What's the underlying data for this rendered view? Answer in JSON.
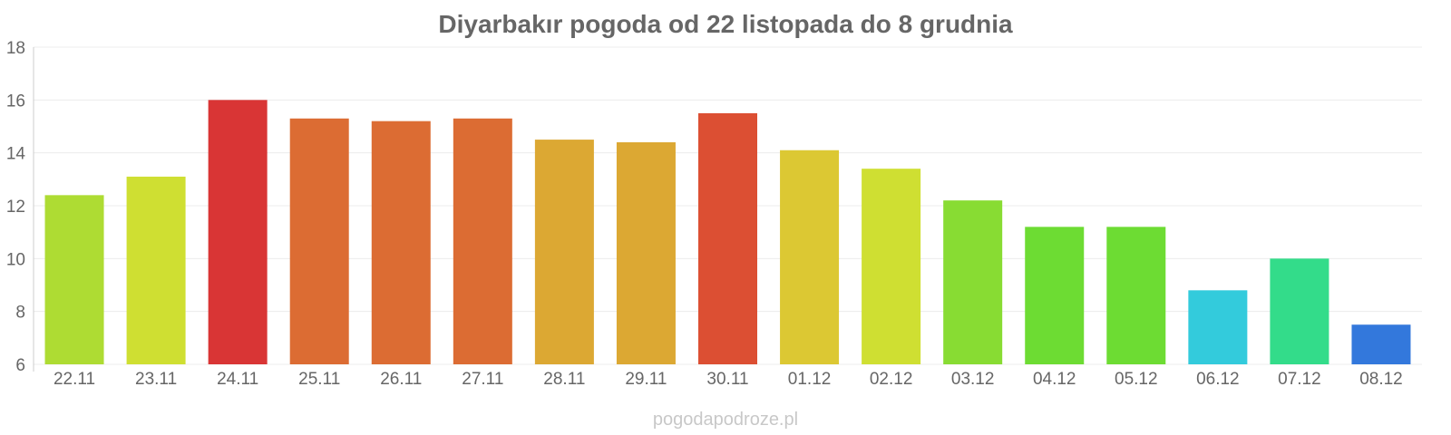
{
  "chart_data": {
    "type": "bar",
    "title": "Diyarbakır pogoda od 22 listopada do 8 grudnia",
    "xlabel": "",
    "ylabel": "",
    "categories": [
      "22.11",
      "23.11",
      "24.11",
      "25.11",
      "26.11",
      "27.11",
      "28.11",
      "29.11",
      "30.11",
      "01.12",
      "02.12",
      "03.12",
      "04.12",
      "05.12",
      "06.12",
      "07.12",
      "08.12"
    ],
    "values": [
      12.4,
      13.1,
      16.0,
      15.3,
      15.2,
      15.3,
      14.5,
      14.4,
      15.5,
      14.1,
      13.4,
      12.2,
      11.2,
      11.2,
      8.8,
      10.0,
      7.5
    ],
    "colors": [
      "#aedc33",
      "#cfdf32",
      "#d93535",
      "#dc6c33",
      "#dc6c33",
      "#dc6c33",
      "#dca833",
      "#dca833",
      "#dc4f33",
      "#dcc833",
      "#cfdf32",
      "#88dc33",
      "#6ddc33",
      "#6ddc33",
      "#33cbdc",
      "#33dc8a",
      "#3378dc"
    ],
    "ylim": [
      6,
      18
    ],
    "yticks": [
      6,
      8,
      10,
      12,
      14,
      16,
      18
    ],
    "grid": true,
    "legend": "none"
  },
  "watermark": "pogodapodroze.pl"
}
